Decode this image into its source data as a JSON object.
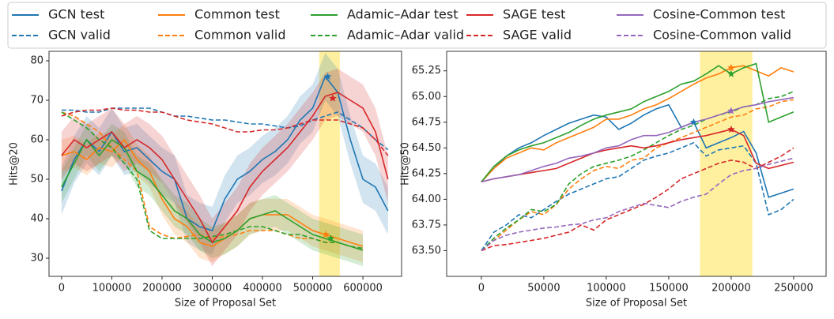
{
  "chart_data": [
    {
      "type": "line",
      "ylabel": "Hits@20",
      "xlabel": "Size of Proposal Set",
      "xlim": [
        -25000,
        677000
      ],
      "ylim": [
        25.4,
        82.4
      ],
      "xticks": [
        0,
        100000,
        200000,
        300000,
        400000,
        500000,
        600000
      ],
      "yticks": [
        30,
        40,
        50,
        60,
        70,
        80
      ],
      "highlight": [
        513000,
        554000
      ],
      "highlight_color": "#fff0a0",
      "x": [
        0,
        25000,
        50000,
        75000,
        100000,
        125000,
        150000,
        175000,
        200000,
        225000,
        250000,
        275000,
        300000,
        325000,
        350000,
        375000,
        400000,
        425000,
        450000,
        475000,
        500000,
        525000,
        550000,
        575000,
        600000,
        625000,
        650000
      ],
      "series": [
        {
          "name": "GCN test",
          "color": "#1f77b4",
          "dash": false,
          "spread": 6,
          "star": {
            "x": 530000,
            "y": 76
          },
          "values": [
            47,
            55,
            60,
            57,
            62,
            57,
            58,
            55,
            52,
            50,
            40,
            38,
            37,
            45,
            50,
            52,
            55,
            57,
            60,
            65,
            68,
            76,
            72,
            60,
            50,
            48,
            42
          ]
        },
        {
          "name": "GCN valid",
          "color": "#1f77b4",
          "dash": true,
          "values": [
            67.5,
            67.5,
            67,
            67,
            68,
            68,
            68,
            68,
            67,
            66,
            66,
            65.5,
            65,
            65,
            64.5,
            64,
            64,
            63.5,
            63,
            63.5,
            65,
            66,
            67,
            65,
            63,
            60,
            57.5
          ]
        },
        {
          "name": "Common test",
          "color": "#ff7f0e",
          "dash": false,
          "spread": 4,
          "star": {
            "x": 526000,
            "y": 36
          },
          "values": [
            56,
            57,
            55,
            58,
            57,
            60,
            55,
            52,
            45,
            40,
            38,
            34,
            33,
            35,
            37,
            40,
            41,
            41,
            41,
            39,
            37,
            36,
            35,
            34,
            33,
            null,
            null
          ]
        },
        {
          "name": "Common valid",
          "color": "#ff7f0e",
          "dash": true,
          "values": [
            67,
            66,
            64,
            62,
            58,
            55,
            52,
            38,
            36,
            35,
            35.5,
            36,
            35,
            35.5,
            36,
            37,
            37,
            37,
            36,
            35,
            35,
            34,
            34,
            33,
            32.5,
            null,
            null
          ]
        },
        {
          "name": "Adamic–Adar test",
          "color": "#2ca02c",
          "dash": false,
          "spread": 4,
          "star": {
            "x": 536000,
            "y": 35
          },
          "values": [
            48,
            54,
            60,
            56,
            60,
            58,
            52,
            50,
            46,
            42,
            40,
            36,
            34,
            35,
            37,
            40,
            41,
            42,
            40,
            38,
            36,
            35,
            34,
            33,
            32,
            null,
            null
          ]
        },
        {
          "name": "Adamic–Adar valid",
          "color": "#2ca02c",
          "dash": true,
          "values": [
            67,
            65,
            63,
            60,
            58,
            54,
            50,
            37,
            35,
            35,
            35,
            35,
            35.5,
            36,
            37,
            38,
            38,
            37,
            36,
            36,
            35,
            34,
            34,
            33,
            32.5,
            null,
            null
          ]
        },
        {
          "name": "SAGE test",
          "color": "#d62728",
          "dash": false,
          "spread": 6,
          "star": {
            "x": 540000,
            "y": 70.5
          },
          "values": [
            56,
            60,
            58,
            60,
            62,
            58,
            60,
            58,
            55,
            50,
            45,
            40,
            34,
            38,
            42,
            48,
            52,
            55,
            58,
            62,
            66,
            71,
            72,
            70,
            68,
            62,
            50
          ]
        },
        {
          "name": "SAGE valid",
          "color": "#d62728",
          "dash": true,
          "values": [
            66,
            67,
            67.5,
            67.5,
            68,
            67.5,
            67.5,
            67,
            67,
            66,
            65,
            64.5,
            64,
            63,
            62,
            62,
            62.5,
            62.5,
            63,
            64,
            65,
            65,
            65,
            64,
            63,
            60,
            56
          ]
        }
      ]
    },
    {
      "type": "line",
      "ylabel": "Hits@50",
      "xlabel": "Size of Proposal Set",
      "xlim": [
        -27800,
        276000
      ],
      "ylim": [
        63.25,
        65.44
      ],
      "xticks": [
        0,
        50000,
        100000,
        150000,
        200000,
        250000
      ],
      "yticks": [
        {
          "value": 63.5,
          "label": "63.50"
        },
        {
          "value": 63.75,
          "label": "63.75"
        },
        {
          "value": 64,
          "label": "64.00"
        },
        {
          "value": 64.25,
          "label": "64.25"
        },
        {
          "value": 64.5,
          "label": "64.50"
        },
        {
          "value": 64.75,
          "label": "64.75"
        },
        {
          "value": 65,
          "label": "65.00"
        },
        {
          "value": 65.25,
          "label": "65.25"
        }
      ],
      "highlight": [
        175000,
        217000
      ],
      "highlight_color": "#fff0a0",
      "x": [
        0,
        10000,
        20000,
        30000,
        40000,
        50000,
        60000,
        70000,
        80000,
        90000,
        100000,
        110000,
        120000,
        130000,
        140000,
        150000,
        160000,
        170000,
        180000,
        190000,
        200000,
        210000,
        220000,
        230000,
        240000,
        250000
      ],
      "series": [
        {
          "name": "GCN test",
          "color": "#1f77b4",
          "dash": false,
          "star": {
            "x": 170000,
            "y": 64.75
          },
          "values": [
            64.17,
            64.3,
            64.42,
            64.5,
            64.55,
            64.62,
            64.68,
            64.74,
            64.78,
            64.82,
            64.8,
            64.68,
            64.74,
            64.82,
            64.88,
            64.92,
            64.7,
            64.75,
            64.5,
            64.55,
            64.6,
            64.66,
            64.45,
            64.02,
            64.06,
            64.1
          ]
        },
        {
          "name": "GCN valid",
          "color": "#1f77b4",
          "dash": true,
          "values": [
            63.5,
            63.68,
            63.75,
            63.85,
            63.82,
            63.9,
            63.98,
            64.05,
            64.1,
            64.15,
            64.2,
            64.22,
            64.3,
            64.38,
            64.42,
            64.45,
            64.5,
            64.55,
            64.42,
            64.48,
            64.5,
            64.52,
            64.35,
            63.85,
            63.9,
            64.0
          ]
        },
        {
          "name": "Common test",
          "color": "#ff7f0e",
          "dash": false,
          "star": {
            "x": 200000,
            "y": 65.28
          },
          "values": [
            64.17,
            64.3,
            64.4,
            64.45,
            64.5,
            64.48,
            64.55,
            64.6,
            64.65,
            64.7,
            64.78,
            64.78,
            64.82,
            64.88,
            64.92,
            64.98,
            65.05,
            65.12,
            65.18,
            65.22,
            65.28,
            65.3,
            65.25,
            65.2,
            65.28,
            65.24
          ]
        },
        {
          "name": "Common valid",
          "color": "#ff7f0e",
          "dash": true,
          "values": [
            63.5,
            63.6,
            63.7,
            63.8,
            63.88,
            63.85,
            63.95,
            64.1,
            64.2,
            64.28,
            64.32,
            64.3,
            64.38,
            64.4,
            64.5,
            64.55,
            64.6,
            64.65,
            64.7,
            64.75,
            64.8,
            64.82,
            64.88,
            64.9,
            64.95,
            64.97
          ]
        },
        {
          "name": "Adamic–Adar test",
          "color": "#2ca02c",
          "dash": false,
          "star": {
            "x": 200000,
            "y": 65.22
          },
          "values": [
            64.17,
            64.32,
            64.42,
            64.48,
            64.52,
            64.55,
            64.6,
            64.65,
            64.72,
            64.78,
            64.82,
            64.85,
            64.88,
            64.95,
            65.0,
            65.05,
            65.12,
            65.15,
            65.22,
            65.3,
            65.22,
            65.28,
            65.32,
            64.75,
            64.8,
            64.85
          ]
        },
        {
          "name": "Adamic–Adar valid",
          "color": "#2ca02c",
          "dash": true,
          "values": [
            63.5,
            63.62,
            63.72,
            63.8,
            63.9,
            63.88,
            63.95,
            64.15,
            64.25,
            64.32,
            64.35,
            64.38,
            64.42,
            64.48,
            64.55,
            64.62,
            64.68,
            64.72,
            64.78,
            64.82,
            64.85,
            64.9,
            64.92,
            64.98,
            65.0,
            65.05
          ]
        },
        {
          "name": "SAGE test",
          "color": "#d62728",
          "dash": false,
          "star": {
            "x": 200000,
            "y": 64.68
          },
          "values": [
            64.17,
            64.2,
            64.22,
            64.24,
            64.26,
            64.28,
            64.3,
            64.35,
            64.4,
            64.45,
            64.48,
            64.5,
            64.52,
            64.5,
            64.52,
            64.55,
            64.58,
            64.6,
            64.62,
            64.65,
            64.68,
            64.62,
            64.35,
            64.3,
            64.33,
            64.36
          ]
        },
        {
          "name": "SAGE valid",
          "color": "#d62728",
          "dash": true,
          "values": [
            63.5,
            63.55,
            63.56,
            63.58,
            63.6,
            63.62,
            63.65,
            63.68,
            63.75,
            63.7,
            63.8,
            63.85,
            63.9,
            63.95,
            64.02,
            64.1,
            64.2,
            64.25,
            64.3,
            64.35,
            64.38,
            64.36,
            64.3,
            64.36,
            64.42,
            64.5
          ]
        },
        {
          "name": "Cosine-Common test",
          "color": "#9467bd",
          "dash": false,
          "star": {
            "x": 200000,
            "y": 64.86
          },
          "values": [
            64.17,
            64.2,
            64.22,
            64.24,
            64.28,
            64.32,
            64.35,
            64.4,
            64.42,
            64.45,
            64.5,
            64.52,
            64.58,
            64.62,
            64.62,
            64.65,
            64.7,
            64.75,
            64.78,
            64.82,
            64.86,
            64.9,
            64.92,
            64.95,
            64.97,
            64.99
          ]
        },
        {
          "name": "Cosine-Common valid",
          "color": "#9467bd",
          "dash": true,
          "values": [
            63.5,
            63.6,
            63.65,
            63.68,
            63.7,
            63.72,
            63.73,
            63.75,
            63.76,
            63.8,
            63.82,
            63.88,
            63.92,
            63.96,
            63.94,
            63.92,
            63.98,
            64.02,
            64.05,
            64.15,
            64.24,
            64.28,
            64.3,
            64.34,
            64.37,
            64.4
          ]
        }
      ]
    }
  ]
}
